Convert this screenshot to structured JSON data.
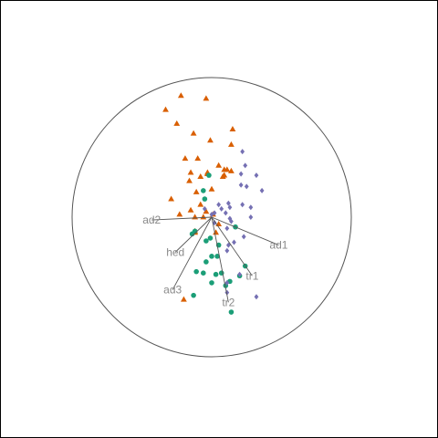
{
  "chart_data": {
    "type": "scatter",
    "plot_kind": "biplot",
    "colors": {
      "triangle": "#d95f02",
      "circle": "#1b9e77",
      "diamond": "#7570b3",
      "vectors": "#555555",
      "labels": "#8a8a8a"
    },
    "circle_radius": 1.0,
    "xlim": [
      -1.0,
      1.0
    ],
    "ylim": [
      -1.0,
      1.0
    ],
    "origin": [
      0,
      0
    ],
    "variables": [
      {
        "label": "ad2",
        "x": -0.43,
        "y": -0.02
      },
      {
        "label": "hed",
        "x": -0.26,
        "y": -0.25
      },
      {
        "label": "ad3",
        "x": -0.28,
        "y": -0.52
      },
      {
        "label": "ad1",
        "x": 0.48,
        "y": -0.2
      },
      {
        "label": "tr1",
        "x": 0.29,
        "y": -0.42
      },
      {
        "label": "tr2",
        "x": 0.12,
        "y": -0.61
      }
    ],
    "series": [
      {
        "marker": "triangle",
        "points": [
          [
            -0.22,
            0.87
          ],
          [
            -0.04,
            0.85
          ],
          [
            -0.33,
            0.77
          ],
          [
            -0.25,
            0.67
          ],
          [
            0.15,
            0.63
          ],
          [
            -0.13,
            0.6
          ],
          [
            -0.01,
            0.55
          ],
          [
            0.14,
            0.52
          ],
          [
            -0.19,
            0.42
          ],
          [
            -0.1,
            0.42
          ],
          [
            0.05,
            0.37
          ],
          [
            0.09,
            0.34
          ],
          [
            0.11,
            0.34
          ],
          [
            0.14,
            0.33
          ],
          [
            -0.15,
            0.32
          ],
          [
            -0.03,
            0.32
          ],
          [
            -0.03,
            0.31
          ],
          [
            0.09,
            0.3
          ],
          [
            -0.08,
            0.29
          ],
          [
            0.08,
            0.29
          ],
          [
            -0.16,
            0.26
          ],
          [
            -0.0,
            0.2
          ],
          [
            -0.11,
            0.18
          ],
          [
            -0.29,
            0.13
          ],
          [
            -0.08,
            0.09
          ],
          [
            -0.15,
            0.05
          ],
          [
            -0.04,
            0.04
          ],
          [
            -0.23,
            0.02
          ],
          [
            0.01,
            0.02
          ],
          [
            -0.06,
            0.0
          ],
          [
            -0.12,
            -0.0
          ],
          [
            0.05,
            -0.05
          ],
          [
            -0.12,
            -0.1
          ],
          [
            -0.12,
            -0.11
          ],
          [
            0.03,
            -0.11
          ],
          [
            -0.2,
            -0.59
          ]
        ]
      },
      {
        "marker": "circle",
        "points": [
          [
            -0.02,
            0.3
          ],
          [
            -0.06,
            0.19
          ],
          [
            -0.05,
            0.13
          ],
          [
            -0.12,
            -0.1
          ],
          [
            -0.14,
            -0.12
          ],
          [
            -0.04,
            -0.17
          ],
          [
            -0.01,
            -0.15
          ],
          [
            0.05,
            -0.2
          ],
          [
            0.17,
            -0.07
          ],
          [
            0.0,
            -0.28
          ],
          [
            0.04,
            -0.28
          ],
          [
            -0.04,
            -0.32
          ],
          [
            0.24,
            -0.35
          ],
          [
            -0.11,
            -0.39
          ],
          [
            -0.06,
            -0.4
          ],
          [
            0.03,
            -0.41
          ],
          [
            0.07,
            -0.4
          ],
          [
            0.2,
            -0.42
          ],
          [
            0.13,
            -0.46
          ],
          [
            -0.0,
            -0.47
          ],
          [
            0.1,
            -0.49
          ],
          [
            -0.13,
            -0.56
          ],
          [
            0.14,
            -0.68
          ]
        ]
      },
      {
        "marker": "diamond",
        "points": [
          [
            0.22,
            0.47
          ],
          [
            0.24,
            0.37
          ],
          [
            0.21,
            0.31
          ],
          [
            0.32,
            0.3
          ],
          [
            0.21,
            0.23
          ],
          [
            0.25,
            0.22
          ],
          [
            0.36,
            0.19
          ],
          [
            0.12,
            0.1
          ],
          [
            0.13,
            0.07
          ],
          [
            0.22,
            0.09
          ],
          [
            0.05,
            0.09
          ],
          [
            0.28,
            0.07
          ],
          [
            0.07,
            0.06
          ],
          [
            -0.05,
            0.06
          ],
          [
            0.02,
            0.03
          ],
          [
            0.1,
            0.03
          ],
          [
            0.0,
            0.02
          ],
          [
            0.13,
            -0.01
          ],
          [
            0.28,
            0.0
          ],
          [
            0.14,
            -0.03
          ],
          [
            0.02,
            -0.04
          ],
          [
            0.11,
            -0.08
          ],
          [
            0.23,
            -0.14
          ],
          [
            0.16,
            -0.18
          ],
          [
            0.12,
            -0.2
          ],
          [
            0.11,
            -0.24
          ],
          [
            0.11,
            -0.47
          ],
          [
            0.11,
            -0.54
          ],
          [
            0.2,
            -0.41
          ],
          [
            0.32,
            -0.57
          ]
        ]
      }
    ]
  }
}
